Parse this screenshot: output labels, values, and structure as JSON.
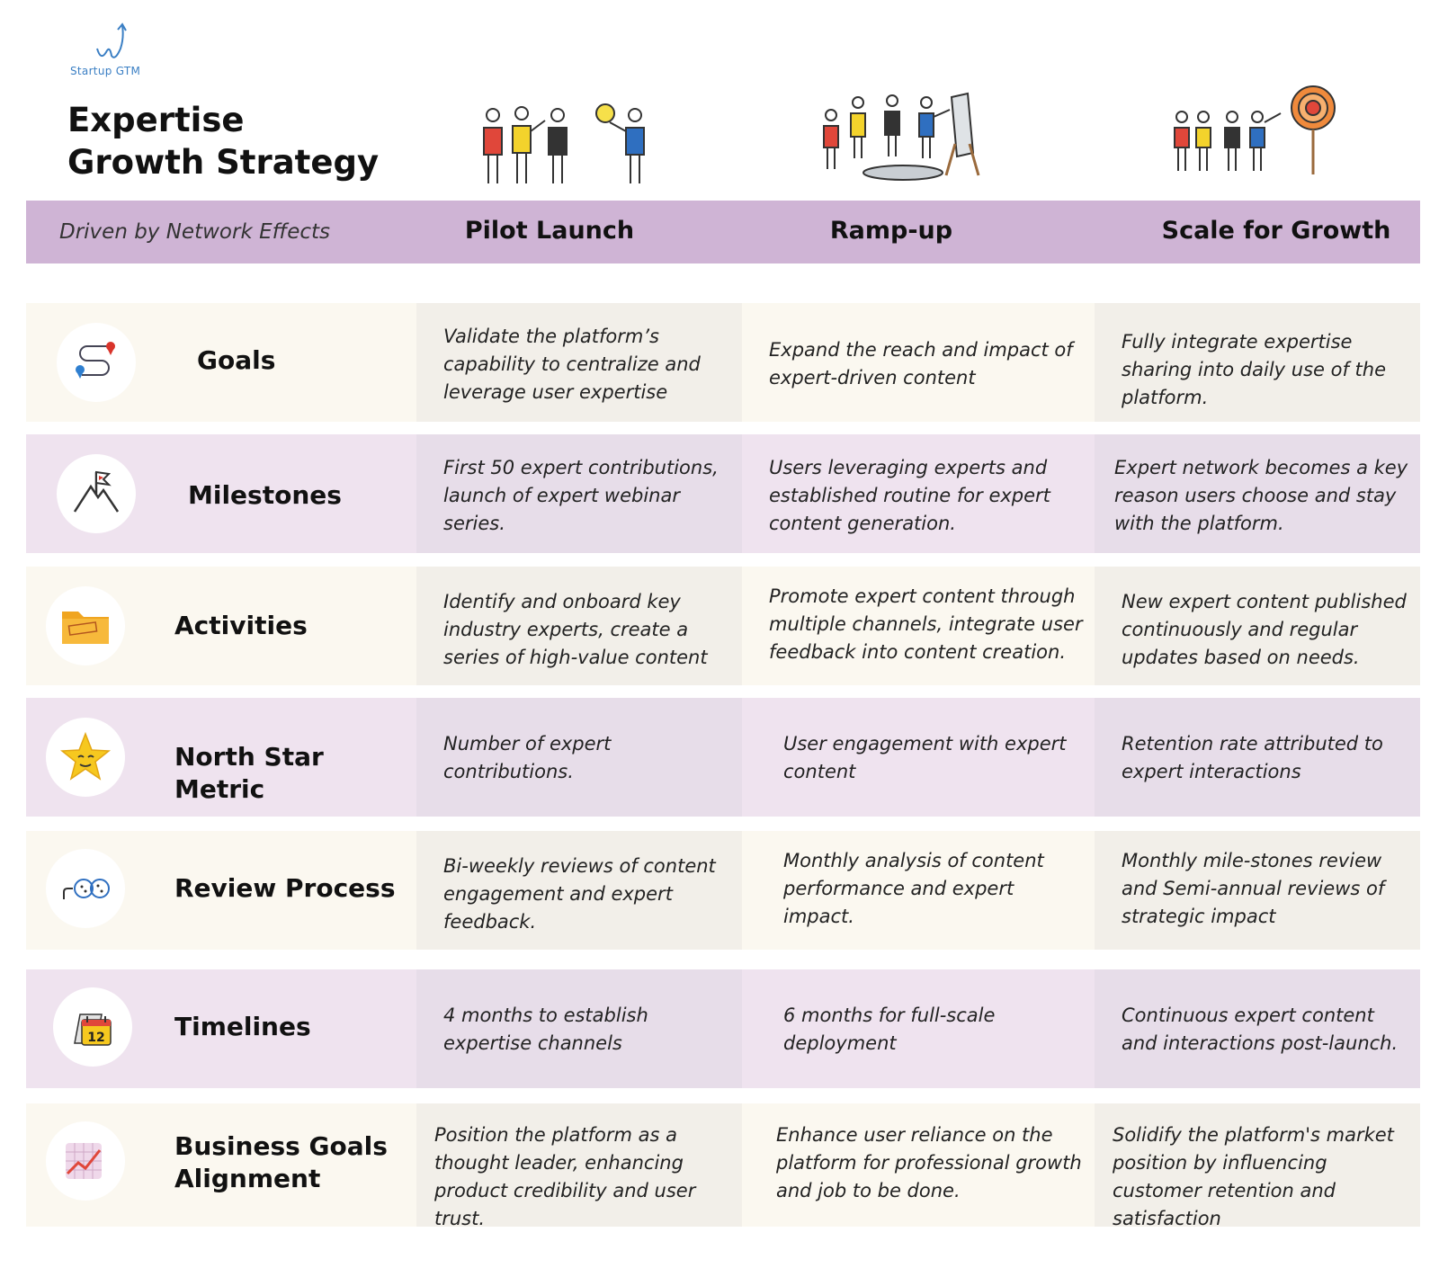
{
  "logo": {
    "text": "Startup GTM"
  },
  "title": {
    "line1": "Expertise",
    "line2": "Growth Strategy"
  },
  "header": {
    "subtitle": "Driven by Network Effects",
    "columns": [
      "Pilot Launch",
      "Ramp-up",
      "Scale for Growth"
    ]
  },
  "rows": [
    {
      "label": "Goals",
      "icon": "route-pins-icon",
      "cells": [
        "Validate the platform’s capability to centralize and leverage user expertise",
        "Expand the reach and impact of expert-driven content",
        "Fully integrate expertise sharing into daily use of the platform."
      ]
    },
    {
      "label": "Milestones",
      "icon": "mountain-flag-icon",
      "cells": [
        "First 50 expert contributions, launch of expert webinar series.",
        "Users leveraging experts and established routine for expert content generation.",
        "Expert network becomes a key reason users choose and stay with the platform."
      ]
    },
    {
      "label": "Activities",
      "icon": "folder-icon",
      "cells": [
        "Identify and onboard key industry experts, create a series of high-value content",
        "Promote expert content through multiple channels, integrate user feedback into content creation.",
        "New expert content published continuously and regular updates based on needs."
      ]
    },
    {
      "label": "North Star Metric",
      "icon": "star-face-icon",
      "cells": [
        "Number of expert contributions.",
        "User engagement with expert content",
        "Retention rate attributed to expert interactions"
      ]
    },
    {
      "label": "Review Process",
      "icon": "review-cycle-icon",
      "cells": [
        "Bi-weekly reviews of content engagement and expert feedback.",
        "Monthly analysis of content performance and expert impact.",
        "Monthly mile-stones review and Semi-annual reviews of strategic impact"
      ]
    },
    {
      "label": "Timelines",
      "icon": "calendar-icon",
      "calendar_number": "12",
      "cells": [
        "4 months to establish expertise channels",
        "6 months for full-scale deployment",
        "Continuous expert content and interactions post-launch."
      ]
    },
    {
      "label": "Business Goals Alignment",
      "label_lines": [
        "Business Goals",
        "Alignment"
      ],
      "icon": "growth-chart-icon",
      "cells": [
        "Position the platform as a thought leader, enhancing product credibility and user trust.",
        "Enhance user reliance on the platform for professional growth and job to be done.",
        "Solidify the platform's market position by influencing customer retention and satisfaction"
      ]
    }
  ],
  "colors": {
    "header_band": "#cfb4d5",
    "row_beige": "#fbf8f0",
    "row_purple": "#efe3ef",
    "logo_blue": "#3b7fc4"
  }
}
